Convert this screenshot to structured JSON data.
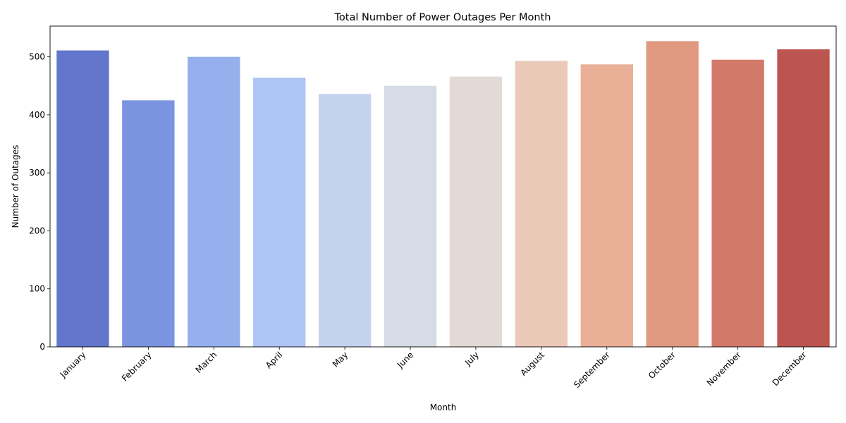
{
  "chart_data": {
    "type": "bar",
    "title": "Total Number of Power Outages Per Month",
    "xlabel": "Month",
    "ylabel": "Number of Outages",
    "categories": [
      "January",
      "February",
      "March",
      "April",
      "May",
      "June",
      "July",
      "August",
      "September",
      "October",
      "November",
      "December"
    ],
    "values": [
      511,
      425,
      500,
      464,
      436,
      450,
      466,
      493,
      487,
      527,
      495,
      513
    ],
    "colors": [
      "#6276cc",
      "#7b94e2",
      "#96b0ee",
      "#adc5f4",
      "#c4d2ef",
      "#d6dbe5",
      "#e3dad6",
      "#ebc9b8",
      "#eaaf97",
      "#e09980",
      "#d37969",
      "#bc5450"
    ],
    "ylim": [
      0,
      553
    ],
    "yticks": [
      0,
      100,
      200,
      300,
      400,
      500
    ],
    "grid": false,
    "legend": "none"
  }
}
